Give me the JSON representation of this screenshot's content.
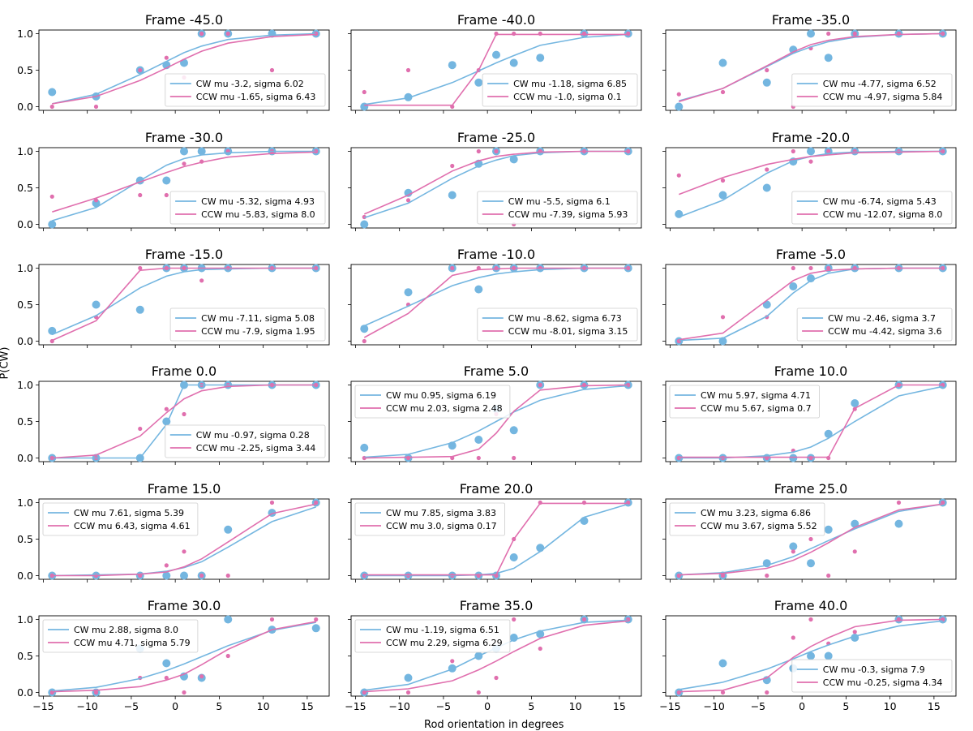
{
  "colors": {
    "cw": "#74b6e0",
    "ccw": "#e06fae"
  },
  "figure": {
    "ylabel": "P(CW)",
    "xlabel": "Rod orientation in degrees"
  },
  "chart_data": {
    "type": "line",
    "layout": "6x3 small multiples",
    "xlim": [
      -15.5,
      17.5
    ],
    "ylim": [
      -0.05,
      1.05
    ],
    "xticks": [
      -15,
      -10,
      -5,
      0,
      5,
      10,
      15
    ],
    "yticks": [
      0.0,
      0.5,
      1.0
    ],
    "x": [
      -14,
      -9,
      -4,
      -1,
      1,
      3,
      6,
      11,
      16
    ],
    "panels": [
      {
        "title": "Frame -45.0",
        "legend": "lower right",
        "cw_label": "CW mu -3.2, sigma 6.02",
        "ccw_label": "CCW mu -1.65, sigma 6.43",
        "cw_points": [
          0.2,
          0.14,
          0.5,
          0.57,
          0.6,
          1.0,
          1.0,
          1.0,
          1.0
        ],
        "ccw_points": [
          0.0,
          0.0,
          0.5,
          0.67,
          0.4,
          1.0,
          1.0,
          0.5,
          1.0
        ],
        "cw_fit": [
          0.04,
          0.17,
          0.44,
          0.62,
          0.74,
          0.83,
          0.92,
          0.98,
          1.0
        ],
        "ccw_fit": [
          0.04,
          0.14,
          0.36,
          0.53,
          0.65,
          0.76,
          0.87,
          0.96,
          0.99
        ]
      },
      {
        "title": "Frame -40.0",
        "legend": "lower right",
        "cw_label": "CW mu -1.18, sigma 6.85",
        "ccw_label": "CCW mu -1.0, sigma 0.1",
        "cw_points": [
          0.0,
          0.13,
          0.57,
          0.33,
          0.71,
          0.6,
          0.67,
          1.0,
          1.0
        ],
        "ccw_points": [
          0.2,
          0.5,
          0.0,
          0.5,
          1.0,
          1.0,
          1.0,
          1.0,
          1.0
        ],
        "cw_fit": [
          0.03,
          0.12,
          0.33,
          0.49,
          0.6,
          0.7,
          0.84,
          0.95,
          0.99
        ],
        "ccw_fit": [
          0.02,
          0.02,
          0.02,
          0.5,
          0.99,
          0.99,
          0.99,
          0.99,
          0.99
        ]
      },
      {
        "title": "Frame -35.0",
        "legend": "lower right",
        "cw_label": "CW mu -4.77, sigma 6.52",
        "ccw_label": "CCW mu -4.97, sigma 5.84",
        "cw_points": [
          0.0,
          0.6,
          0.33,
          0.78,
          1.0,
          0.67,
          1.0,
          1.0,
          1.0
        ],
        "ccw_points": [
          0.17,
          0.2,
          0.5,
          0.0,
          0.8,
          1.0,
          1.0,
          1.0,
          1.0
        ],
        "cw_fit": [
          0.08,
          0.25,
          0.55,
          0.73,
          0.82,
          0.89,
          0.95,
          0.99,
          1.0
        ],
        "ccw_fit": [
          0.07,
          0.25,
          0.56,
          0.75,
          0.85,
          0.91,
          0.96,
          0.99,
          1.0
        ]
      },
      {
        "title": "Frame -30.0",
        "legend": "lower right",
        "cw_label": "CW mu -5.32, sigma 4.93",
        "ccw_label": "CCW mu -5.83, sigma 8.0",
        "cw_points": [
          0.0,
          0.29,
          0.6,
          0.6,
          1.0,
          1.0,
          1.0,
          1.0,
          1.0
        ],
        "ccw_points": [
          0.38,
          0.33,
          0.4,
          0.4,
          0.83,
          0.86,
          1.0,
          1.0,
          1.0
        ],
        "cw_fit": [
          0.05,
          0.23,
          0.6,
          0.81,
          0.9,
          0.95,
          0.98,
          1.0,
          1.0
        ],
        "ccw_fit": [
          0.17,
          0.36,
          0.58,
          0.71,
          0.79,
          0.85,
          0.92,
          0.97,
          0.99
        ]
      },
      {
        "title": "Frame -25.0",
        "legend": "lower right",
        "cw_label": "CW mu -5.5, sigma 6.1",
        "ccw_label": "CCW mu -7.39, sigma 5.93",
        "cw_points": [
          0.0,
          0.43,
          0.4,
          0.83,
          1.0,
          0.89,
          1.0,
          1.0,
          1.0
        ],
        "ccw_points": [
          0.1,
          0.33,
          0.8,
          1.0,
          1.0,
          0.0,
          1.0,
          1.0,
          1.0
        ],
        "cw_fit": [
          0.09,
          0.29,
          0.63,
          0.8,
          0.88,
          0.94,
          0.98,
          1.0,
          1.0
        ],
        "ccw_fit": [
          0.14,
          0.4,
          0.73,
          0.87,
          0.93,
          0.96,
          0.99,
          1.0,
          1.0
        ]
      },
      {
        "title": "Frame -20.0",
        "legend": "lower right",
        "cw_label": "CW mu -6.74, sigma 5.43",
        "ccw_label": "CCW mu -12.07, sigma 8.0",
        "cw_points": [
          0.14,
          0.4,
          0.5,
          0.86,
          1.0,
          1.0,
          1.0,
          1.0,
          1.0
        ],
        "ccw_points": [
          0.67,
          0.6,
          0.75,
          1.0,
          0.86,
          1.0,
          1.0,
          1.0,
          1.0
        ],
        "cw_fit": [
          0.1,
          0.33,
          0.7,
          0.87,
          0.93,
          0.97,
          0.99,
          1.0,
          1.0
        ],
        "ccw_fit": [
          0.41,
          0.64,
          0.82,
          0.89,
          0.93,
          0.95,
          0.98,
          0.99,
          1.0
        ]
      },
      {
        "title": "Frame -15.0",
        "legend": "lower right",
        "cw_label": "CW mu -7.11, sigma 5.08",
        "ccw_label": "CCW mu -7.9, sigma 1.95",
        "cw_points": [
          0.14,
          0.5,
          0.43,
          1.0,
          1.0,
          1.0,
          1.0,
          1.0,
          1.0
        ],
        "ccw_points": [
          0.0,
          0.33,
          1.0,
          1.0,
          1.0,
          0.83,
          1.0,
          1.0,
          1.0
        ],
        "cw_fit": [
          0.09,
          0.35,
          0.73,
          0.89,
          0.95,
          0.98,
          0.99,
          1.0,
          1.0
        ],
        "ccw_fit": [
          0.01,
          0.28,
          0.97,
          1.0,
          1.0,
          1.0,
          1.0,
          1.0,
          1.0
        ]
      },
      {
        "title": "Frame -10.0",
        "legend": "lower right",
        "cw_label": "CW mu -8.62, sigma 6.73",
        "ccw_label": "CCW mu -8.01, sigma 3.15",
        "cw_points": [
          0.17,
          0.67,
          1.0,
          0.71,
          1.0,
          1.0,
          1.0,
          1.0,
          1.0
        ],
        "ccw_points": [
          0.0,
          0.5,
          1.0,
          1.0,
          1.0,
          1.0,
          1.0,
          1.0,
          1.0
        ],
        "cw_fit": [
          0.21,
          0.48,
          0.76,
          0.87,
          0.92,
          0.95,
          0.98,
          1.0,
          1.0
        ],
        "ccw_fit": [
          0.05,
          0.38,
          0.9,
          0.98,
          0.99,
          1.0,
          1.0,
          1.0,
          1.0
        ]
      },
      {
        "title": "Frame -5.0",
        "legend": "lower right",
        "cw_label": "CW mu -2.46, sigma 3.7",
        "ccw_label": "CCW mu -4.42, sigma 3.6",
        "cw_points": [
          0.0,
          0.0,
          0.5,
          0.75,
          0.86,
          1.0,
          1.0,
          1.0,
          1.0
        ],
        "ccw_points": [
          0.0,
          0.33,
          0.33,
          1.0,
          1.0,
          1.0,
          1.0,
          1.0,
          1.0
        ],
        "cw_fit": [
          0.01,
          0.04,
          0.34,
          0.66,
          0.83,
          0.93,
          0.99,
          1.0,
          1.0
        ],
        "ccw_fit": [
          0.02,
          0.11,
          0.56,
          0.83,
          0.93,
          0.97,
          0.99,
          1.0,
          1.0
        ]
      },
      {
        "title": "Frame 0.0",
        "legend": "lower right",
        "cw_label": "CW mu -0.97, sigma 0.28",
        "ccw_label": "CCW mu -2.25, sigma 3.44",
        "cw_points": [
          0.0,
          0.0,
          0.0,
          0.5,
          1.0,
          1.0,
          1.0,
          1.0,
          1.0
        ],
        "ccw_points": [
          0.0,
          0.0,
          0.4,
          0.67,
          0.6,
          1.0,
          1.0,
          1.0,
          1.0
        ],
        "cw_fit": [
          0.0,
          0.0,
          0.0,
          0.46,
          1.0,
          1.0,
          1.0,
          1.0,
          1.0
        ],
        "ccw_fit": [
          0.0,
          0.04,
          0.3,
          0.62,
          0.81,
          0.92,
          0.98,
          1.0,
          1.0
        ]
      },
      {
        "title": "Frame 5.0",
        "legend": "upper left",
        "cw_label": "CW mu 0.95, sigma 6.19",
        "ccw_label": "CCW mu 2.03, sigma 2.48",
        "cw_points": [
          0.14,
          0.0,
          0.17,
          0.25,
          0.67,
          0.38,
          1.0,
          1.0,
          1.0
        ],
        "ccw_points": [
          0.0,
          0.0,
          0.0,
          0.0,
          0.6,
          0.0,
          1.0,
          1.0,
          1.0
        ],
        "cw_fit": [
          0.01,
          0.05,
          0.21,
          0.37,
          0.5,
          0.63,
          0.79,
          0.94,
          0.99
        ],
        "ccw_fit": [
          0.0,
          0.01,
          0.02,
          0.12,
          0.34,
          0.64,
          0.93,
          0.99,
          1.0
        ]
      },
      {
        "title": "Frame 10.0",
        "legend": "upper left",
        "cw_label": "CW mu 5.97, sigma 4.71",
        "ccw_label": "CCW mu 5.67, sigma 0.7",
        "cw_points": [
          0.0,
          0.0,
          0.0,
          0.0,
          0.0,
          0.33,
          0.75,
          1.0,
          1.0
        ],
        "ccw_points": [
          0.0,
          0.0,
          0.0,
          0.1,
          0.0,
          0.0,
          0.67,
          1.0,
          1.0
        ],
        "cw_fit": [
          0.0,
          0.0,
          0.03,
          0.08,
          0.15,
          0.27,
          0.5,
          0.85,
          0.98
        ],
        "ccw_fit": [
          0.01,
          0.01,
          0.01,
          0.01,
          0.01,
          0.01,
          0.68,
          1.0,
          1.0
        ]
      },
      {
        "title": "Frame 15.0",
        "legend": "upper left",
        "cw_label": "CW mu 7.61, sigma 5.39",
        "ccw_label": "CCW mu 6.43, sigma 4.61",
        "cw_points": [
          0.0,
          0.0,
          0.0,
          0.0,
          0.0,
          0.0,
          0.63,
          0.86,
          1.0
        ],
        "ccw_points": [
          0.0,
          0.0,
          0.0,
          0.14,
          0.33,
          0.0,
          0.0,
          1.0,
          1.0
        ],
        "cw_fit": [
          0.0,
          0.01,
          0.02,
          0.06,
          0.11,
          0.19,
          0.39,
          0.74,
          0.94
        ],
        "ccw_fit": [
          0.0,
          0.0,
          0.02,
          0.05,
          0.12,
          0.23,
          0.46,
          0.85,
          0.98
        ]
      },
      {
        "title": "Frame 20.0",
        "legend": "upper left",
        "cw_label": "CW mu 7.85, sigma 3.83",
        "ccw_label": "CCW mu 3.0, sigma 0.17",
        "cw_points": [
          0.0,
          0.0,
          0.0,
          0.0,
          0.0,
          0.25,
          0.38,
          0.75,
          1.0
        ],
        "ccw_points": [
          0.0,
          0.0,
          0.0,
          0.0,
          0.0,
          0.5,
          1.0,
          1.0,
          1.0
        ],
        "cw_fit": [
          0.0,
          0.0,
          0.0,
          0.01,
          0.03,
          0.1,
          0.33,
          0.8,
          0.98
        ],
        "ccw_fit": [
          0.01,
          0.01,
          0.01,
          0.01,
          0.01,
          0.5,
          0.99,
          0.99,
          0.99
        ]
      },
      {
        "title": "Frame 25.0",
        "legend": "upper left",
        "cw_label": "CW mu 3.23, sigma 6.86",
        "ccw_label": "CCW mu 3.67, sigma 5.52",
        "cw_points": [
          0.0,
          0.0,
          0.17,
          0.4,
          0.17,
          0.63,
          0.71,
          0.71,
          1.0
        ],
        "ccw_points": [
          0.0,
          0.0,
          0.0,
          0.33,
          0.5,
          0.0,
          0.33,
          1.0,
          1.0
        ],
        "cw_fit": [
          0.01,
          0.04,
          0.14,
          0.26,
          0.37,
          0.48,
          0.64,
          0.88,
          0.98
        ],
        "ccw_fit": [
          0.01,
          0.03,
          0.1,
          0.21,
          0.32,
          0.45,
          0.66,
          0.9,
          0.98
        ]
      },
      {
        "title": "Frame 30.0",
        "legend": "upper left",
        "cw_label": "CW mu 2.88, sigma 8.0",
        "ccw_label": "CCW mu 4.71, sigma 5.79",
        "cw_points": [
          0.0,
          0.0,
          0.6,
          0.4,
          0.22,
          0.2,
          1.0,
          0.86,
          0.88
        ],
        "ccw_points": [
          0.0,
          0.0,
          0.2,
          0.2,
          0.0,
          0.22,
          0.5,
          1.0,
          1.0
        ],
        "cw_fit": [
          0.02,
          0.07,
          0.19,
          0.3,
          0.39,
          0.49,
          0.64,
          0.85,
          0.96
        ],
        "ccw_fit": [
          0.01,
          0.03,
          0.08,
          0.17,
          0.25,
          0.38,
          0.59,
          0.86,
          0.97
        ]
      },
      {
        "title": "Frame 35.0",
        "legend": "upper left",
        "cw_label": "CW mu -1.19, sigma 6.51",
        "ccw_label": "CCW mu 2.29, sigma 6.29",
        "cw_points": [
          0.0,
          0.2,
          0.33,
          0.5,
          0.6,
          0.75,
          0.8,
          1.0,
          1.0
        ],
        "ccw_points": [
          0.0,
          0.0,
          0.43,
          0.0,
          0.2,
          1.0,
          0.6,
          1.0,
          1.0
        ],
        "cw_fit": [
          0.03,
          0.11,
          0.32,
          0.5,
          0.61,
          0.72,
          0.84,
          0.96,
          0.99
        ],
        "ccw_fit": [
          0.01,
          0.05,
          0.16,
          0.31,
          0.43,
          0.56,
          0.74,
          0.92,
          0.98
        ]
      },
      {
        "title": "Frame 40.0",
        "legend": "lower right",
        "cw_label": "CW mu -0.3, sigma 7.9",
        "ccw_label": "CCW mu -0.25, sigma 4.34",
        "cw_points": [
          0.0,
          0.4,
          0.17,
          0.33,
          0.5,
          0.5,
          0.75,
          1.0,
          1.0
        ],
        "ccw_points": [
          0.0,
          0.0,
          0.0,
          0.75,
          1.0,
          0.67,
          0.83,
          1.0,
          1.0
        ],
        "cw_fit": [
          0.04,
          0.14,
          0.32,
          0.46,
          0.56,
          0.65,
          0.77,
          0.91,
          0.98
        ],
        "ccw_fit": [
          0.01,
          0.03,
          0.2,
          0.48,
          0.63,
          0.75,
          0.9,
          0.99,
          1.0
        ]
      }
    ]
  }
}
